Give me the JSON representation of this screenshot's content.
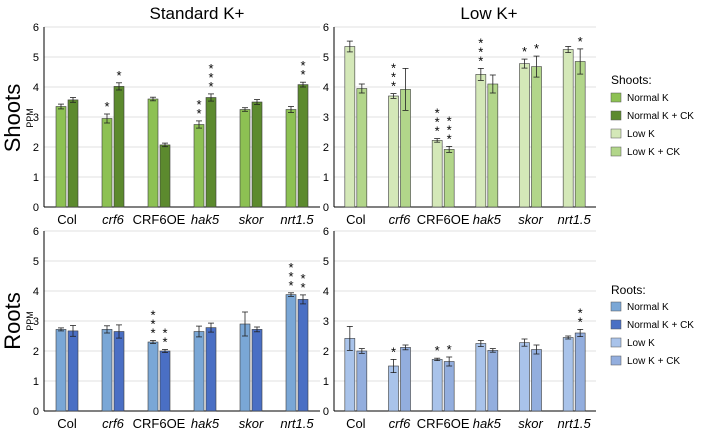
{
  "colors": {
    "shoot_normal": "#8dc153",
    "shoot_normal_ck": "#5c8a2e",
    "shoot_low": "#d4e8b8",
    "shoot_low_ck": "#b2d68a",
    "root_normal": "#7aa7d6",
    "root_normal_ck": "#4a6fc4",
    "root_low": "#a9c3ea",
    "root_low_ck": "#93aede"
  },
  "legends": {
    "shoots": {
      "title": "Shoots:",
      "items": [
        "Normal K",
        "Normal K + CK",
        "Low K",
        "Low K + CK"
      ]
    },
    "roots": {
      "title": "Roots:",
      "items": [
        "Normal K",
        "Normal K + CK",
        "Low K",
        "Low K + CK"
      ]
    }
  },
  "row_labels": {
    "shoots": "Shoots",
    "roots": "Roots"
  },
  "chart_data": [
    {
      "type": "bar",
      "title": "Standard K+",
      "row": "Shoots",
      "ylabel": "PPM",
      "ylim": [
        0,
        6
      ],
      "yticks": [
        "0",
        "1",
        "2",
        "3",
        "4",
        "5",
        "6"
      ],
      "categories": [
        "Col",
        "crf6",
        "CRF6OE",
        "hak5",
        "skor",
        "nrt1.5"
      ],
      "category_italic": [
        false,
        true,
        false,
        true,
        true,
        true
      ],
      "series": [
        {
          "name": "Normal K",
          "values": [
            3.35,
            2.95,
            3.6,
            2.75,
            3.25,
            3.25
          ],
          "errors": [
            0.08,
            0.15,
            0.06,
            0.12,
            0.06,
            0.1
          ],
          "stars": [
            "",
            "*",
            "",
            "**",
            "",
            ""
          ]
        },
        {
          "name": "Normal K + CK",
          "values": [
            3.57,
            4.02,
            2.07,
            3.65,
            3.5,
            4.08
          ],
          "errors": [
            0.08,
            0.12,
            0.06,
            0.12,
            0.08,
            0.08
          ],
          "stars": [
            "",
            "*",
            "",
            "***",
            "",
            "**"
          ]
        }
      ]
    },
    {
      "type": "bar",
      "title": "Low K+",
      "row": "Shoots",
      "ylabel": "",
      "ylim": [
        0,
        6
      ],
      "yticks": [
        "0",
        "1",
        "2",
        "3",
        "4",
        "5",
        "6"
      ],
      "categories": [
        "Col",
        "crf6",
        "CRF6OE",
        "hak5",
        "skor",
        "nrt1.5"
      ],
      "category_italic": [
        false,
        true,
        false,
        true,
        true,
        true
      ],
      "series": [
        {
          "name": "Low K",
          "values": [
            5.35,
            3.7,
            2.22,
            4.42,
            4.78,
            5.25
          ],
          "errors": [
            0.18,
            0.08,
            0.06,
            0.2,
            0.15,
            0.1
          ],
          "stars": [
            "",
            "***",
            "***",
            "***",
            "*",
            ""
          ]
        },
        {
          "name": "Low K + CK",
          "values": [
            3.95,
            3.92,
            1.92,
            4.1,
            4.68,
            4.85
          ],
          "errors": [
            0.15,
            0.7,
            0.1,
            0.3,
            0.35,
            0.42
          ],
          "stars": [
            "",
            "",
            "***",
            "",
            "*",
            "*"
          ]
        }
      ]
    },
    {
      "type": "bar",
      "title": "",
      "row": "Roots",
      "ylabel": "PPM",
      "ylim": [
        0,
        6
      ],
      "yticks": [
        "0",
        "1",
        "2",
        "3",
        "4",
        "5",
        "6"
      ],
      "categories": [
        "Col",
        "crf6",
        "CRF6OE",
        "hak5",
        "skor",
        "nrt1.5"
      ],
      "category_italic": [
        false,
        true,
        false,
        true,
        true,
        true
      ],
      "series": [
        {
          "name": "Normal K",
          "values": [
            2.72,
            2.72,
            2.3,
            2.65,
            2.9,
            3.88
          ],
          "errors": [
            0.05,
            0.12,
            0.05,
            0.18,
            0.4,
            0.06
          ],
          "stars": [
            "",
            "",
            "***",
            "",
            "",
            "***"
          ]
        },
        {
          "name": "Normal K + CK",
          "values": [
            2.67,
            2.65,
            2.0,
            2.78,
            2.72,
            3.72
          ],
          "errors": [
            0.18,
            0.22,
            0.05,
            0.15,
            0.08,
            0.15
          ],
          "stars": [
            "",
            "",
            "**",
            "",
            "",
            "**"
          ]
        }
      ]
    },
    {
      "type": "bar",
      "title": "",
      "row": "Roots",
      "ylabel": "",
      "ylim": [
        0,
        6
      ],
      "yticks": [
        "0",
        "1",
        "2",
        "3",
        "4",
        "5",
        "6"
      ],
      "categories": [
        "Col",
        "crf6",
        "CRF6OE",
        "hak5",
        "skor",
        "nrt1.5"
      ],
      "category_italic": [
        false,
        true,
        false,
        true,
        true,
        true
      ],
      "series": [
        {
          "name": "Low K",
          "values": [
            2.42,
            1.5,
            1.72,
            2.25,
            2.28,
            2.45
          ],
          "errors": [
            0.4,
            0.22,
            0.04,
            0.1,
            0.12,
            0.05
          ],
          "stars": [
            "",
            "*",
            "*",
            "",
            "",
            ""
          ]
        },
        {
          "name": "Low K + CK",
          "values": [
            2.0,
            2.12,
            1.65,
            2.02,
            2.05,
            2.6
          ],
          "errors": [
            0.08,
            0.08,
            0.15,
            0.06,
            0.15,
            0.12
          ],
          "stars": [
            "",
            "",
            "*",
            "",
            "",
            "**"
          ]
        }
      ]
    }
  ]
}
